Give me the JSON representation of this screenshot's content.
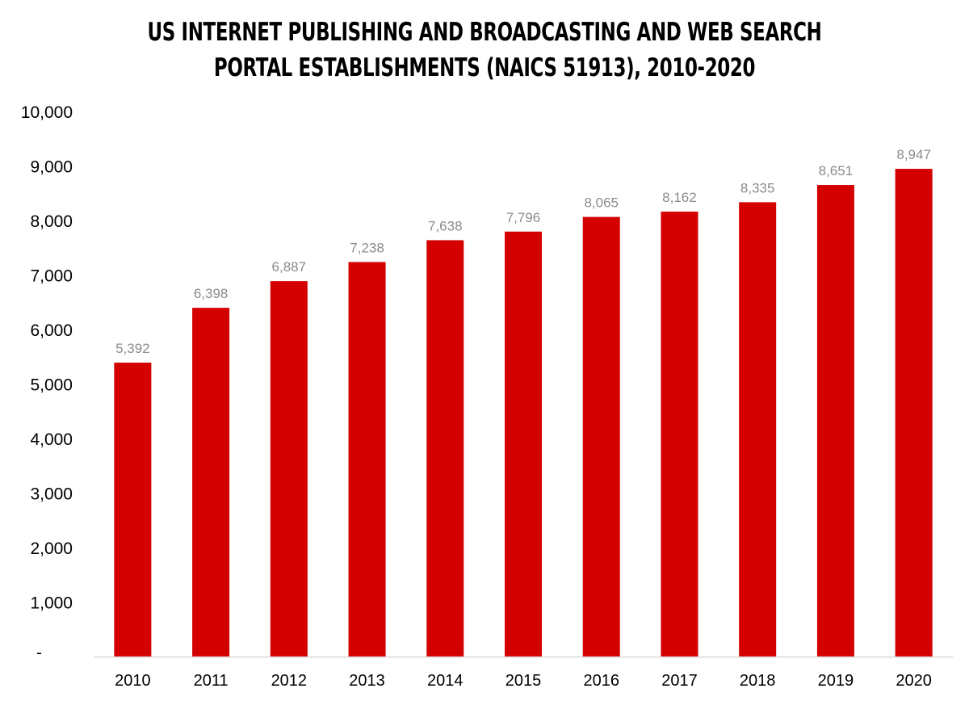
{
  "chart_data": {
    "type": "bar",
    "title": "US INTERNET PUBLISHING AND BROADCASTING AND WEB SEARCH PORTAL ESTABLISHMENTS (NAICS 51913), 2010-2020",
    "title_lines": [
      "US INTERNET PUBLISHING AND BROADCASTING AND WEB SEARCH",
      "PORTAL ESTABLISHMENTS (NAICS 51913), 2010-2020"
    ],
    "xlabel": "",
    "ylabel": "",
    "categories": [
      "2010",
      "2011",
      "2012",
      "2013",
      "2014",
      "2015",
      "2016",
      "2017",
      "2018",
      "2019",
      "2020"
    ],
    "values": [
      5392,
      6398,
      6887,
      7238,
      7638,
      7796,
      8065,
      8162,
      8335,
      8651,
      8947
    ],
    "data_labels": [
      "5,392",
      "6,398",
      "6,887",
      "7,238",
      "7,638",
      "7,796",
      "8,065",
      "8,162",
      "8,335",
      "8,651",
      "8,947"
    ],
    "ylim": [
      0,
      10000
    ],
    "y_ticks": [
      0,
      1000,
      2000,
      3000,
      4000,
      5000,
      6000,
      7000,
      8000,
      9000,
      10000
    ],
    "y_tick_labels": [
      "-",
      "1,000",
      "2,000",
      "3,000",
      "4,000",
      "5,000",
      "6,000",
      "7,000",
      "8,000",
      "9,000",
      "10,000"
    ],
    "grid": false,
    "legend": "none",
    "colors": {
      "bar": "#d40000",
      "data_label": "#8c8c8c",
      "axis": "#d9d9d9",
      "text": "#000000"
    }
  }
}
